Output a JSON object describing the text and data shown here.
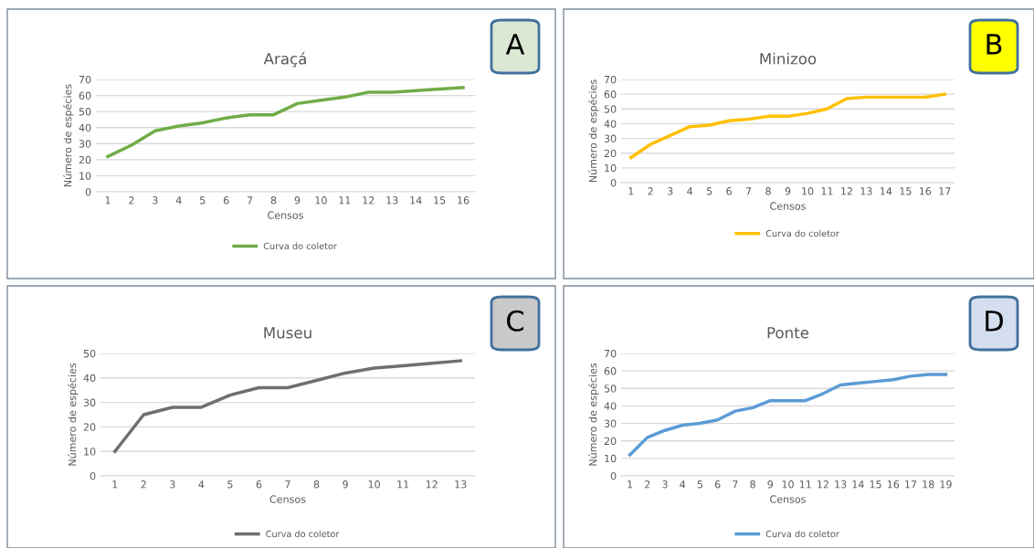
{
  "chart_data": [
    {
      "type": "line",
      "title": "Araçá",
      "xlabel": "Censos",
      "ylabel": "Número de espécies",
      "annotations": [
        "A"
      ],
      "categories": [
        "1",
        "2",
        "3",
        "4",
        "5",
        "6",
        "7",
        "8",
        "9",
        "10",
        "11",
        "12",
        "13",
        "14",
        "15",
        "16"
      ],
      "series": [
        {
          "name": "Curva do coletor",
          "color": "#70ad47",
          "values": [
            22,
            29,
            38,
            41,
            43,
            46,
            48,
            48,
            55,
            57,
            59,
            62,
            62,
            63,
            64,
            65
          ]
        }
      ],
      "ylim": [
        0,
        70
      ],
      "yticks": [
        0,
        10,
        20,
        30,
        40,
        50,
        60,
        70
      ],
      "grid": "y",
      "legend": "bottom",
      "line_style": "solid"
    },
    {
      "type": "line",
      "title": "Minizoo",
      "xlabel": "Censos",
      "ylabel": "Número de espécies",
      "annotations": [
        "B"
      ],
      "categories": [
        "1",
        "2",
        "3",
        "4",
        "5",
        "6",
        "7",
        "8",
        "9",
        "10",
        "11",
        "12",
        "13",
        "14",
        "15",
        "16",
        "17"
      ],
      "series": [
        {
          "name": "Curva do coletor",
          "color": "#ffc000",
          "values": [
            17,
            26,
            32,
            38,
            39,
            42,
            43,
            45,
            45,
            47,
            50,
            57,
            58,
            58,
            58,
            58,
            60
          ]
        }
      ],
      "ylim": [
        0,
        70
      ],
      "yticks": [
        0,
        10,
        20,
        30,
        40,
        50,
        60,
        70
      ],
      "grid": "y",
      "legend": "bottom",
      "line_style": "solid"
    },
    {
      "type": "line",
      "title": "Museu",
      "xlabel": "Censos",
      "ylabel": "Número de espécies",
      "annotations": [
        "C"
      ],
      "categories": [
        "1",
        "2",
        "3",
        "4",
        "5",
        "6",
        "7",
        "8",
        "9",
        "10",
        "11",
        "12",
        "13"
      ],
      "series": [
        {
          "name": "Curva do coletor",
          "color": "#6f6f6f",
          "values": [
            10,
            25,
            28,
            28,
            33,
            36,
            36,
            39,
            42,
            44,
            45,
            46,
            47
          ]
        }
      ],
      "ylim": [
        0,
        50
      ],
      "yticks": [
        0,
        10,
        20,
        30,
        40,
        50
      ],
      "grid": "y",
      "legend": "bottom",
      "line_style": "solid"
    },
    {
      "type": "line",
      "title": "Ponte",
      "xlabel": "Censos",
      "ylabel": "Número de espécies",
      "annotations": [
        "D"
      ],
      "categories": [
        "1",
        "2",
        "3",
        "4",
        "5",
        "6",
        "7",
        "8",
        "9",
        "10",
        "11",
        "12",
        "13",
        "14",
        "15",
        "16",
        "17",
        "18",
        "19"
      ],
      "series": [
        {
          "name": "Curva do coletor",
          "color": "#5b9bd5",
          "values": [
            12,
            22,
            26,
            29,
            30,
            32,
            37,
            39,
            43,
            43,
            43,
            47,
            52,
            53,
            54,
            55,
            57,
            58,
            58
          ]
        }
      ],
      "ylim": [
        0,
        70
      ],
      "yticks": [
        0,
        10,
        20,
        30,
        40,
        50,
        60,
        70
      ],
      "grid": "y",
      "legend": "bottom",
      "line_style": "solid"
    }
  ]
}
